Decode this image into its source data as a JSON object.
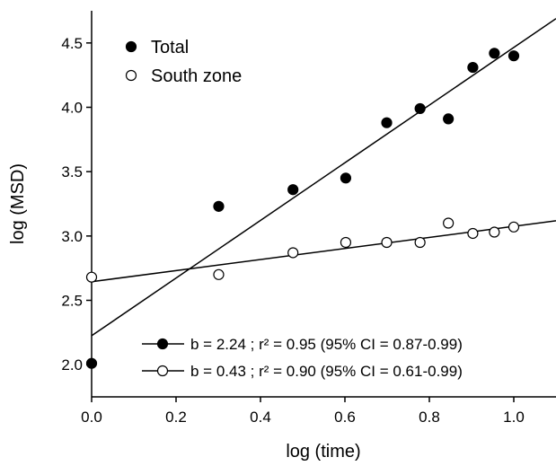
{
  "chart_data": {
    "type": "scatter",
    "xlabel": "log (time)",
    "ylabel": "log (MSD)",
    "xlim": [
      0.0,
      1.1
    ],
    "ylim": [
      1.75,
      4.75
    ],
    "x_ticks": [
      "0.0",
      "0.2",
      "0.4",
      "0.6",
      "0.8",
      "1.0"
    ],
    "y_ticks": [
      "2.0",
      "2.5",
      "3.0",
      "3.5",
      "4.0",
      "4.5"
    ],
    "grid": false,
    "legend_position": "top-left",
    "series": [
      {
        "name": "Total",
        "marker": "filled-circle",
        "color": "#000000",
        "x": [
          0.0,
          0.301,
          0.477,
          0.602,
          0.699,
          0.778,
          0.845,
          0.903,
          0.954,
          1.0
        ],
        "y": [
          2.01,
          3.23,
          3.36,
          3.45,
          3.88,
          3.99,
          3.91,
          4.31,
          4.42,
          4.4
        ],
        "fit": {
          "intercept": 2.225,
          "slope": 2.24,
          "label": "b = 2.24 ; r² = 0.95 (95% CI = 0.87-0.99)"
        }
      },
      {
        "name": "South zone",
        "marker": "open-circle",
        "color": "#000000",
        "x": [
          0.0,
          0.301,
          0.477,
          0.602,
          0.699,
          0.778,
          0.845,
          0.903,
          0.954,
          1.0
        ],
        "y": [
          2.68,
          2.7,
          2.87,
          2.95,
          2.95,
          2.95,
          3.1,
          3.02,
          3.03,
          3.07
        ],
        "fit": {
          "intercept": 2.645,
          "slope": 0.43,
          "label": "b = 0.43 ; r² = 0.90 (95% CI = 0.61-0.99)"
        }
      }
    ]
  }
}
